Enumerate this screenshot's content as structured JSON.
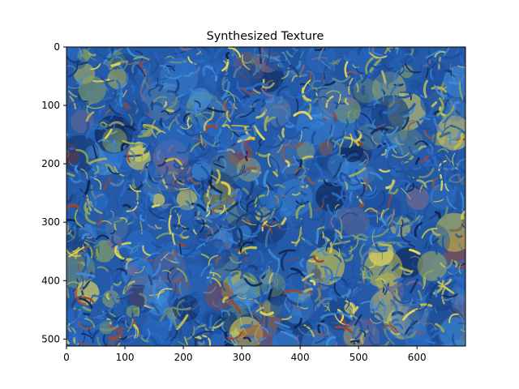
{
  "chart_data": {
    "type": "heatmap",
    "title": "Synthesized Texture",
    "xlabel": "",
    "ylabel": "",
    "image_description": "",
    "image_width": 683,
    "image_height": 512,
    "xlim": [
      0,
      683
    ],
    "ylim": [
      512,
      0
    ],
    "x_ticks": [
      0,
      100,
      200,
      300,
      400,
      500,
      600
    ],
    "y_ticks": [
      0,
      100,
      200,
      300,
      400,
      500
    ],
    "grid": false,
    "legend": "none",
    "palette": [
      "#1d4f9c",
      "#2a6bc4",
      "#3f8bd8",
      "#163a78",
      "#0e2350",
      "#c8c24a",
      "#e4d65a",
      "#8fa85a",
      "#6f8f7a",
      "#8a5a4a",
      "#a0452e",
      "#7a6a8c",
      "#5a7fa8",
      "#b4b46a"
    ],
    "background_color": "#245aa8"
  }
}
